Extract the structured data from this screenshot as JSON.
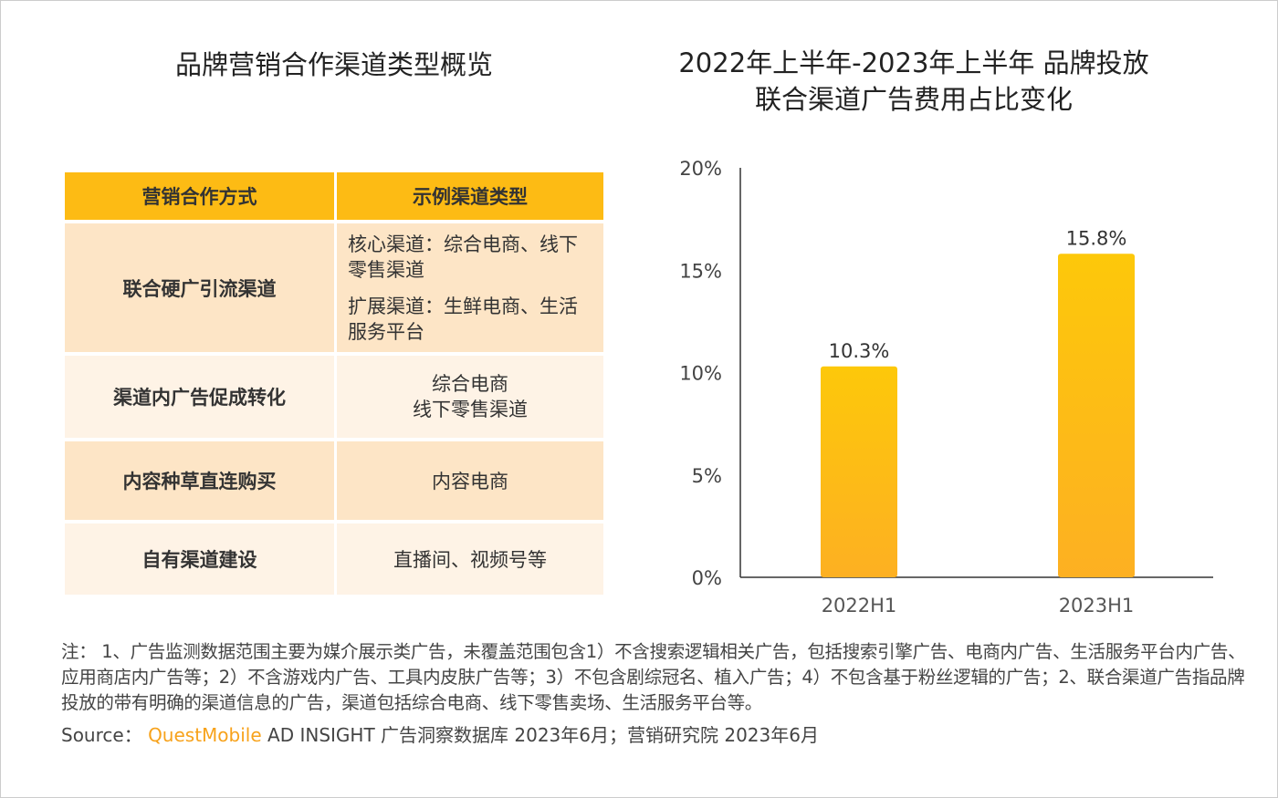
{
  "table_title": "品牌营销合作渠道类型概览",
  "chart_title_line1": "2022年上半年-2023年上半年 品牌投放",
  "chart_title_line2": "联合渠道广告费用占比变化",
  "watermark": "QUESTMOBILE",
  "table": {
    "headers": [
      "营销合作方式",
      "示例渠道类型"
    ],
    "rows": [
      {
        "method": "联合硬广引流渠道",
        "examples": [
          "核心渠道：综合电商、线下零售渠道",
          "扩展渠道：生鲜电商、生活服务平台"
        ]
      },
      {
        "method": "渠道内广告促成转化",
        "examples": [
          "综合电商",
          "线下零售渠道"
        ]
      },
      {
        "method": "内容种草直连购买",
        "examples": [
          "内容电商"
        ]
      },
      {
        "method": "自有渠道建设",
        "examples": [
          "直播间、视频号等"
        ]
      }
    ]
  },
  "chart_data": {
    "type": "bar",
    "title": "2022年上半年-2023年上半年 品牌投放联合渠道广告费用占比变化",
    "categories": [
      "2022H1",
      "2023H1"
    ],
    "values": [
      10.3,
      15.8
    ],
    "data_labels": [
      "10.3%",
      "15.8%"
    ],
    "ylim": [
      0,
      20
    ],
    "yticks": [
      "0%",
      "5%",
      "10%",
      "15%",
      "20%"
    ],
    "grid": false,
    "bar_color": "#FDB913"
  },
  "note": "注： 1、广告监测数据范围主要为媒介展示类广告，未覆盖范围包含1）不含搜索逻辑相关广告，包括搜索引擎广告、电商内广告、生活服务平台内广告、应用商店内广告等；2）不含游戏内广告、工具内皮肤广告等；3）不包含剧综冠名、植入广告；4）不包含基于粉丝逻辑的广告；2、联合渠道广告指品牌投放的带有明确的渠道信息的广告，渠道包括综合电商、线下零售卖场、生活服务平台等。",
  "source": {
    "label": "Source：",
    "brand": "QuestMobile",
    "text": "AD INSIGHT 广告洞察数据库 2023年6月；营销研究院 2023年6月"
  }
}
